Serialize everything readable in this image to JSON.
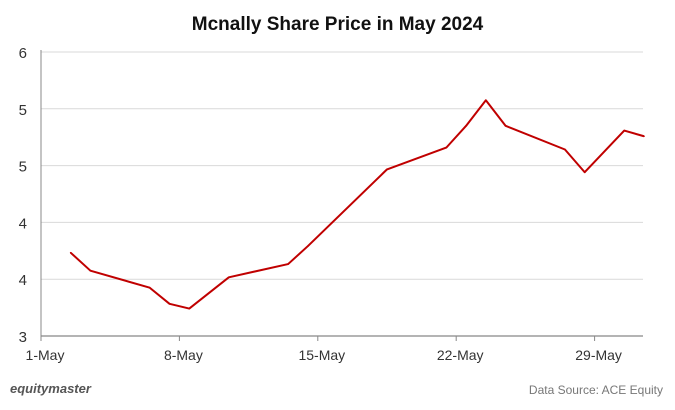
{
  "chart_data": {
    "type": "line",
    "title": "Mcnally Share Price in May 2024",
    "xlabel": "",
    "ylabel": "",
    "x_ticks": [
      {
        "day": 1,
        "label": "1-May"
      },
      {
        "day": 8,
        "label": "8-May"
      },
      {
        "day": 15,
        "label": "15-May"
      },
      {
        "day": 22,
        "label": "22-May"
      },
      {
        "day": 29,
        "label": "29-May"
      }
    ],
    "y_ticks": [
      {
        "value": 3.0,
        "label": "3"
      },
      {
        "value": 3.6,
        "label": "4"
      },
      {
        "value": 4.2,
        "label": "4"
      },
      {
        "value": 4.8,
        "label": "5"
      },
      {
        "value": 5.4,
        "label": "5"
      },
      {
        "value": 6.0,
        "label": "6"
      }
    ],
    "xlim": [
      1,
      31.6
    ],
    "ylim": [
      3,
      6
    ],
    "grid": true,
    "series": [
      {
        "name": "Share Price",
        "color": "#c00000",
        "x": [
          "2-May",
          "3-May",
          "6-May",
          "7-May",
          "8-May",
          "10-May",
          "13-May",
          "14-May",
          "18-May",
          "21-May",
          "22-May",
          "23-May",
          "24-May",
          "27-May",
          "28-May",
          "30-May",
          "31-May"
        ],
        "days": [
          2,
          3,
          6,
          7,
          8,
          10,
          13,
          14,
          18,
          21,
          22,
          23,
          24,
          27,
          28,
          30,
          31
        ],
        "values": [
          3.88,
          3.69,
          3.51,
          3.34,
          3.29,
          3.62,
          3.76,
          3.95,
          4.76,
          4.99,
          5.22,
          5.49,
          5.22,
          4.97,
          4.73,
          5.17,
          5.11
        ]
      }
    ]
  },
  "footer": {
    "brand": "equitymaster",
    "source": "Data Source: ACE Equity"
  }
}
